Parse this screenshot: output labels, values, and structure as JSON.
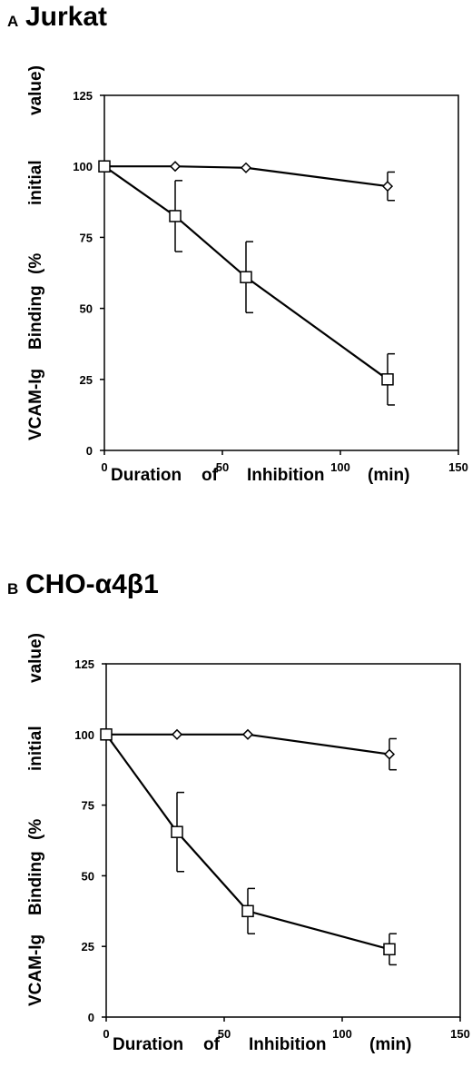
{
  "chart_data": [
    {
      "type": "line",
      "panel_letter": "A",
      "title": "Jurkat",
      "xlabel": [
        "Duration",
        "of",
        "Inhibition",
        "(min)"
      ],
      "ylabel": [
        "VCAM-Ig",
        "Binding",
        "(%",
        "initial",
        "value)"
      ],
      "xlim": [
        0,
        150
      ],
      "ylim": [
        0,
        125
      ],
      "xticks": [
        0,
        50,
        100,
        150
      ],
      "yticks": [
        0,
        25,
        50,
        75,
        100,
        125
      ],
      "series": [
        {
          "marker": "diamond",
          "x": [
            0,
            30,
            60,
            120
          ],
          "y": [
            100,
            100,
            99.5,
            93
          ],
          "err": [
            0,
            0,
            0,
            5
          ]
        },
        {
          "marker": "square",
          "x": [
            0,
            30,
            60,
            120
          ],
          "y": [
            100,
            82.5,
            61,
            25
          ],
          "err": [
            0,
            12.5,
            12.5,
            9
          ]
        }
      ]
    },
    {
      "type": "line",
      "panel_letter": "B",
      "title": "CHO-α4β1",
      "xlabel": [
        "Duration",
        "of",
        "Inhibition",
        "(min)"
      ],
      "ylabel": [
        "VCAM-Ig",
        "Binding",
        "(%",
        "initial",
        "value)"
      ],
      "xlim": [
        0,
        150
      ],
      "ylim": [
        0,
        125
      ],
      "xticks": [
        0,
        50,
        100,
        150
      ],
      "yticks": [
        0,
        25,
        50,
        75,
        100,
        125
      ],
      "series": [
        {
          "marker": "diamond",
          "x": [
            0,
            30,
            60,
            120
          ],
          "y": [
            100,
            100,
            100,
            93
          ],
          "err": [
            0,
            0,
            0,
            5.5
          ]
        },
        {
          "marker": "square",
          "x": [
            0,
            30,
            60,
            120
          ],
          "y": [
            100,
            65.5,
            37.5,
            24
          ],
          "err": [
            0,
            14,
            8,
            5.5
          ]
        }
      ]
    }
  ]
}
